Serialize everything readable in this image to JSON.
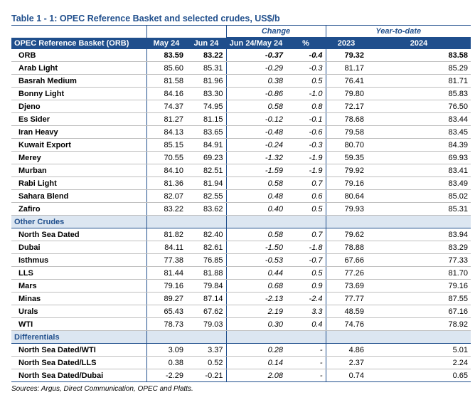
{
  "title": "Table 1 - 1: OPEC Reference Basket and selected crudes, US$/b",
  "group_headers": {
    "change": "Change",
    "ytd": "Year-to-date"
  },
  "columns": [
    "OPEC Reference Basket (ORB)",
    "May 24",
    "Jun 24",
    "Jun 24/May 24",
    "%",
    "2023",
    "2024"
  ],
  "sections": [
    {
      "label": "",
      "rows": [
        [
          "ORB",
          "83.59",
          "83.22",
          "-0.37",
          "-0.4",
          "79.32",
          "83.58"
        ],
        [
          "Arab Light",
          "85.60",
          "85.31",
          "-0.29",
          "-0.3",
          "81.17",
          "85.29"
        ],
        [
          "Basrah Medium",
          "81.58",
          "81.96",
          "0.38",
          "0.5",
          "76.41",
          "81.71"
        ],
        [
          "Bonny Light",
          "84.16",
          "83.30",
          "-0.86",
          "-1.0",
          "79.80",
          "85.83"
        ],
        [
          "Djeno",
          "74.37",
          "74.95",
          "0.58",
          "0.8",
          "72.17",
          "76.50"
        ],
        [
          "Es Sider",
          "81.27",
          "81.15",
          "-0.12",
          "-0.1",
          "78.68",
          "83.44"
        ],
        [
          "Iran Heavy",
          "84.13",
          "83.65",
          "-0.48",
          "-0.6",
          "79.58",
          "83.45"
        ],
        [
          "Kuwait Export",
          "85.15",
          "84.91",
          "-0.24",
          "-0.3",
          "80.70",
          "84.39"
        ],
        [
          "Merey",
          "70.55",
          "69.23",
          "-1.32",
          "-1.9",
          "59.35",
          "69.93"
        ],
        [
          "Murban",
          "84.10",
          "82.51",
          "-1.59",
          "-1.9",
          "79.92",
          "83.41"
        ],
        [
          "Rabi Light",
          "81.36",
          "81.94",
          "0.58",
          "0.7",
          "79.16",
          "83.49"
        ],
        [
          "Sahara Blend",
          "82.07",
          "82.55",
          "0.48",
          "0.6",
          "80.64",
          "85.02"
        ],
        [
          "Zafiro",
          "83.22",
          "83.62",
          "0.40",
          "0.5",
          "79.93",
          "85.31"
        ]
      ]
    },
    {
      "label": "Other Crudes",
      "rows": [
        [
          "North Sea Dated",
          "81.82",
          "82.40",
          "0.58",
          "0.7",
          "79.62",
          "83.94"
        ],
        [
          "Dubai",
          "84.11",
          "82.61",
          "-1.50",
          "-1.8",
          "78.88",
          "83.29"
        ],
        [
          "Isthmus",
          "77.38",
          "76.85",
          "-0.53",
          "-0.7",
          "67.66",
          "77.33"
        ],
        [
          "LLS",
          "81.44",
          "81.88",
          "0.44",
          "0.5",
          "77.26",
          "81.70"
        ],
        [
          "Mars",
          "79.16",
          "79.84",
          "0.68",
          "0.9",
          "73.69",
          "79.16"
        ],
        [
          "Minas",
          "89.27",
          "87.14",
          "-2.13",
          "-2.4",
          "77.77",
          "87.55"
        ],
        [
          "Urals",
          "65.43",
          "67.62",
          "2.19",
          "3.3",
          "48.59",
          "67.16"
        ],
        [
          "WTI",
          "78.73",
          "79.03",
          "0.30",
          "0.4",
          "74.76",
          "78.92"
        ]
      ]
    },
    {
      "label": "Differentials",
      "rows": [
        [
          "North Sea Dated/WTI",
          "3.09",
          "3.37",
          "0.28",
          "-",
          "4.86",
          "5.01"
        ],
        [
          "North Sea Dated/LLS",
          "0.38",
          "0.52",
          "0.14",
          "-",
          "2.37",
          "2.24"
        ],
        [
          "North Sea Dated/Dubai",
          "-2.29",
          "-0.21",
          "2.08",
          "-",
          "0.74",
          "0.65"
        ]
      ]
    }
  ],
  "sources": "Sources:  Argus, Direct Communication, OPEC and Platts."
}
